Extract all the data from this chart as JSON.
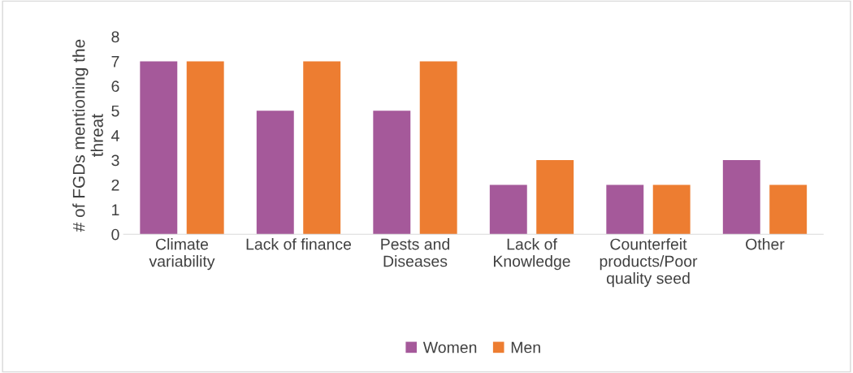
{
  "chart_data": {
    "type": "bar",
    "ylabel": "# of FGDs mentioning the threat",
    "categories": [
      "Climate variability",
      "Lack of finance",
      "Pests and Diseases",
      "Lack of Knowledge",
      "Counterfeit products/Poor quality seed",
      "Other"
    ],
    "series": [
      {
        "name": "Women",
        "color": "#a5599a",
        "values": [
          7,
          5,
          5,
          2,
          2,
          3
        ]
      },
      {
        "name": "Men",
        "color": "#ed7d31",
        "values": [
          7,
          7,
          7,
          3,
          2,
          2
        ]
      }
    ],
    "ylim": [
      0,
      8
    ],
    "yticks": [
      0,
      1,
      2,
      3,
      4,
      5,
      6,
      7,
      8
    ],
    "grid": false,
    "legend": "bottom"
  }
}
